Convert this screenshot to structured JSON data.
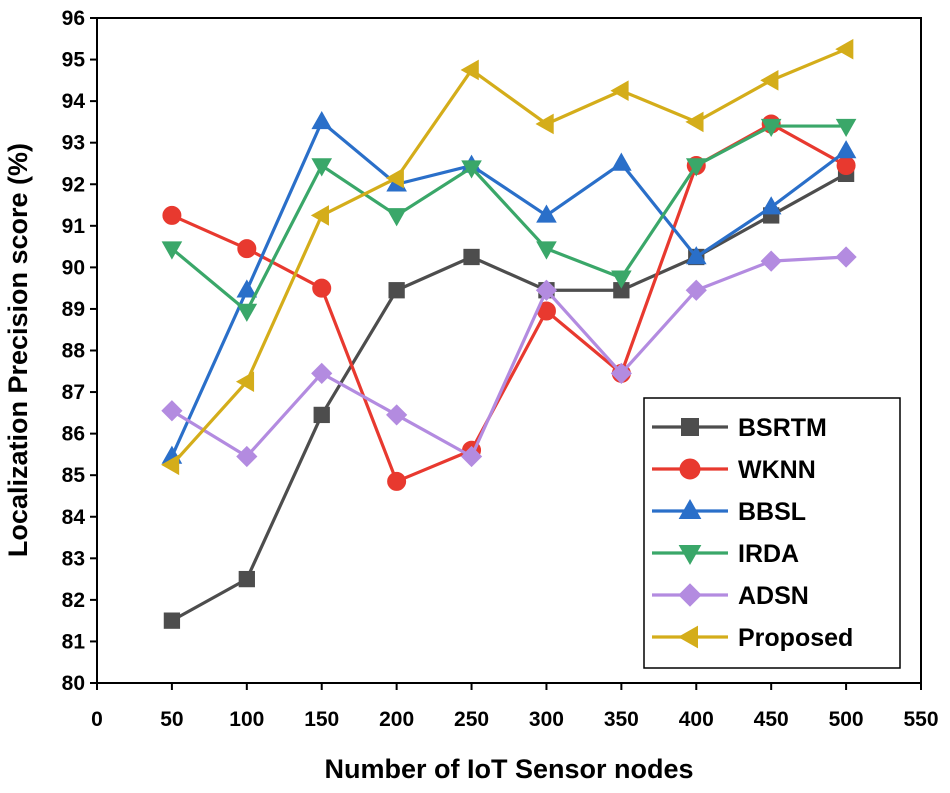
{
  "chart_data": {
    "type": "line",
    "title": "",
    "xlabel": "Number of IoT Sensor nodes",
    "ylabel": "Localization Precision score (%)",
    "xlim": [
      0,
      550
    ],
    "ylim": [
      80,
      96
    ],
    "xticks": [
      0,
      50,
      100,
      150,
      200,
      250,
      300,
      350,
      400,
      450,
      500,
      550
    ],
    "yticks": [
      80,
      81,
      82,
      83,
      84,
      85,
      86,
      87,
      88,
      89,
      90,
      91,
      92,
      93,
      94,
      95,
      96
    ],
    "x": [
      50,
      100,
      150,
      200,
      250,
      300,
      350,
      400,
      450,
      500
    ],
    "grid": false,
    "legend_position": "bottom-right",
    "series": [
      {
        "name": "BSRTM",
        "color": "#4d4d4d",
        "marker": "square",
        "values": [
          81.5,
          82.5,
          86.45,
          89.45,
          90.25,
          89.45,
          89.45,
          90.25,
          91.25,
          92.25
        ]
      },
      {
        "name": "WKNN",
        "color": "#e8392f",
        "marker": "circle",
        "values": [
          91.25,
          90.45,
          89.5,
          84.85,
          85.6,
          88.95,
          87.45,
          92.45,
          93.45,
          92.45
        ]
      },
      {
        "name": "BBSL",
        "color": "#2a6fc9",
        "marker": "triangle-up",
        "values": [
          85.45,
          89.45,
          93.5,
          92.0,
          92.45,
          91.25,
          92.5,
          90.25,
          91.45,
          92.8
        ]
      },
      {
        "name": "IRDA",
        "color": "#3aa769",
        "marker": "triangle-down",
        "values": [
          90.45,
          88.95,
          92.45,
          91.25,
          92.4,
          90.45,
          89.75,
          92.45,
          93.4,
          93.4
        ]
      },
      {
        "name": "ADSN",
        "color": "#b38be0",
        "marker": "diamond",
        "values": [
          86.55,
          85.45,
          87.45,
          86.45,
          85.45,
          89.45,
          87.45,
          89.45,
          90.15,
          90.25
        ]
      },
      {
        "name": "Proposed",
        "color": "#d4ad1a",
        "marker": "triangle-left",
        "values": [
          85.25,
          87.25,
          91.25,
          92.15,
          94.75,
          93.45,
          94.25,
          93.5,
          94.5,
          95.25
        ]
      }
    ]
  }
}
